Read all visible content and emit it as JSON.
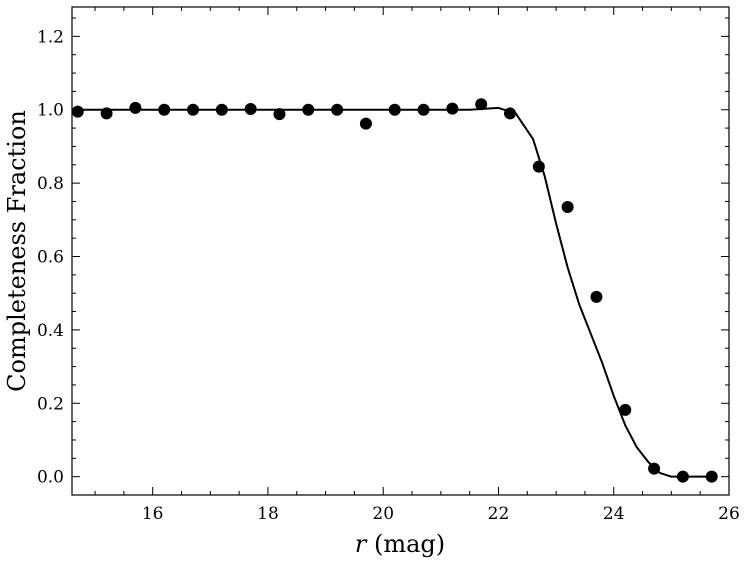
{
  "chart_data": {
    "type": "scatter",
    "title": "",
    "xlabel_var": "r",
    "xlabel_unit": " (mag)",
    "ylabel": "Completeness Fraction",
    "xlim": [
      14.6,
      26
    ],
    "ylim": [
      -0.05,
      1.28
    ],
    "xticks": [
      16,
      18,
      20,
      22,
      24,
      26
    ],
    "yticks": [
      0.0,
      0.2,
      0.4,
      0.6,
      0.8,
      1.0,
      1.2
    ],
    "xtick_labels": [
      "16",
      "18",
      "20",
      "22",
      "24",
      "26"
    ],
    "ytick_labels": [
      "0.0",
      "0.2",
      "0.4",
      "0.6",
      "0.8",
      "1.0",
      "1.2"
    ],
    "grid": false,
    "series": [
      {
        "kind": "points",
        "x": [
          14.7,
          15.2,
          15.7,
          16.2,
          16.7,
          17.2,
          17.7,
          18.2,
          18.7,
          19.2,
          19.7,
          20.2,
          20.7,
          21.2,
          21.7,
          22.2,
          22.7,
          23.2,
          23.7,
          24.2,
          24.7,
          25.2,
          25.7
        ],
        "y": [
          0.995,
          0.99,
          1.005,
          1.0,
          1.0,
          1.0,
          1.002,
          0.988,
          1.0,
          1.0,
          0.962,
          1.0,
          1.0,
          1.003,
          1.015,
          0.99,
          0.845,
          0.735,
          0.49,
          0.182,
          0.022,
          0.0,
          0.0
        ]
      },
      {
        "kind": "fit",
        "x": [
          14.6,
          16.0,
          18.0,
          20.0,
          21.5,
          22.0,
          22.3,
          22.6,
          22.8,
          23.0,
          23.2,
          23.4,
          23.6,
          23.8,
          24.0,
          24.2,
          24.4,
          24.6,
          24.8,
          25.0,
          25.3,
          25.7
        ],
        "y": [
          1.0,
          1.0,
          1.0,
          1.0,
          1.0,
          1.005,
          0.99,
          0.92,
          0.82,
          0.69,
          0.57,
          0.47,
          0.39,
          0.31,
          0.22,
          0.14,
          0.08,
          0.04,
          0.01,
          0.0,
          0.0,
          0.0
        ]
      }
    ]
  }
}
